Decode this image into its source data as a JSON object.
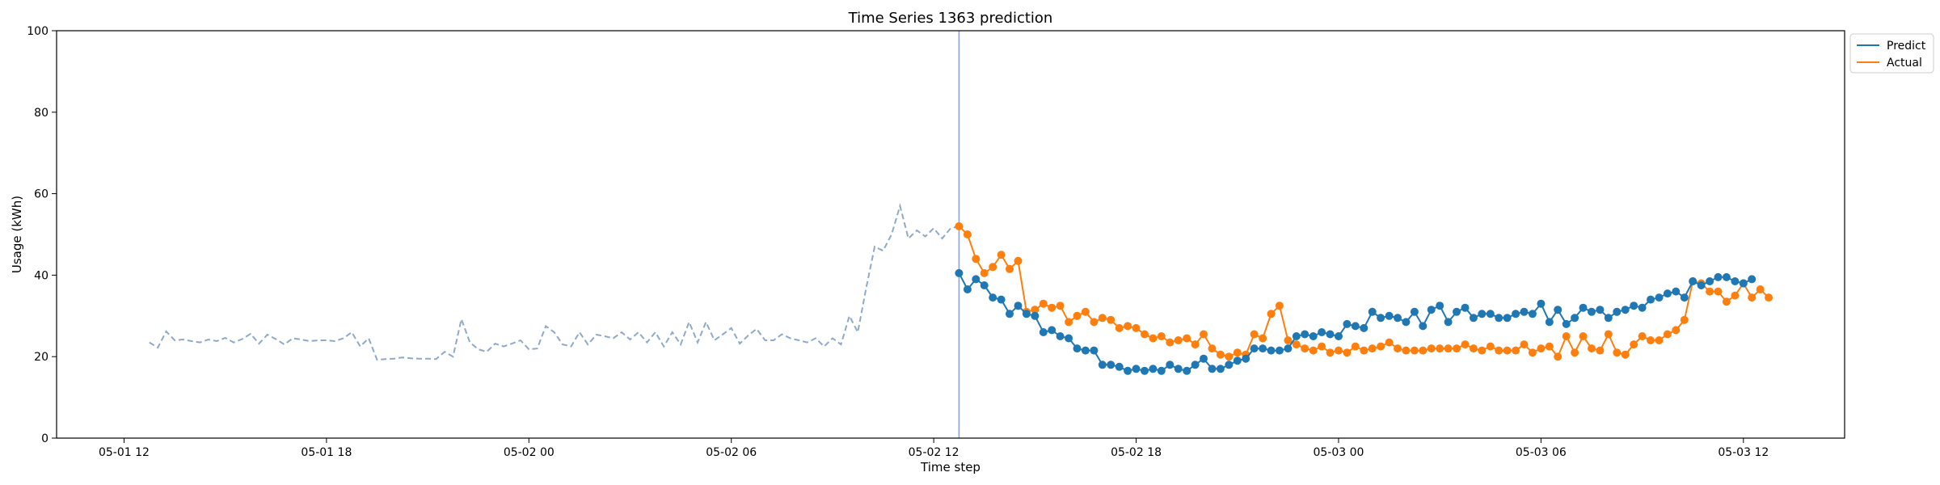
{
  "chart_data": {
    "type": "line",
    "title": "Time Series 1363 prediction",
    "xlabel": "Time step",
    "ylabel": "Usage (kWh)",
    "ylim": [
      0,
      100
    ],
    "yticks": [
      0,
      20,
      40,
      60,
      80,
      100
    ],
    "x_range": [
      "05-01 10:00",
      "05-03 15:00"
    ],
    "xtick_labels": [
      "05-01 12",
      "05-01 18",
      "05-02 00",
      "05-02 06",
      "05-02 12",
      "05-02 18",
      "05-03 00",
      "05-03 06",
      "05-03 12"
    ],
    "xtick_times": [
      "05-01 12:00",
      "05-01 18:00",
      "05-02 00:00",
      "05-02 06:00",
      "05-02 12:00",
      "05-02 18:00",
      "05-03 00:00",
      "05-03 06:00",
      "05-03 12:00"
    ],
    "step_minutes": 15,
    "grid": false,
    "legend_position": "upper-right-outside",
    "split_line_time": "05-02 12:45",
    "colors": {
      "history": "#8ea9c9",
      "predict": "#1f77b4",
      "actual": "#ff7f0e",
      "split": "#8c9fd0"
    },
    "history": {
      "x_start": "05-01 12:45",
      "values": [
        23.5,
        22.2,
        26.2,
        24.0,
        24.2,
        23.8,
        23.5,
        24.2,
        23.8,
        24.6,
        23.5,
        24.3,
        25.6,
        23.2,
        25.4,
        24.3,
        23.0,
        24.5,
        24.2,
        23.8,
        24.0,
        24.0,
        23.8,
        24.5,
        26.0,
        22.5,
        24.5,
        19.2,
        19.4,
        19.5,
        19.8,
        19.6,
        19.5,
        19.5,
        19.4,
        21.2,
        20.0,
        29.2,
        23.5,
        21.8,
        21.2,
        23.2,
        22.5,
        23.2,
        24.0,
        21.8,
        22.0,
        27.5,
        26.0,
        23.0,
        22.5,
        26.0,
        23.0,
        25.4,
        25.0,
        24.5,
        26.0,
        24.2,
        26.0,
        23.5,
        26.0,
        22.5,
        26.0,
        23.0,
        28.5,
        23.5,
        28.5,
        24.0,
        25.5,
        27.0,
        23.2,
        25.2,
        26.8,
        24.0,
        24.0,
        25.5,
        24.5,
        24.0,
        23.5,
        24.5,
        22.5,
        24.5,
        23.0,
        30.0,
        26.0,
        37.0,
        47.0,
        46.0,
        50.0,
        57.0,
        49.0,
        51.0,
        49.5,
        51.5,
        49.0,
        51.5,
        52.0
      ]
    },
    "series": [
      {
        "name": "Predict",
        "x_start": "05-02 12:45",
        "values": [
          40.5,
          36.5,
          39.0,
          37.5,
          34.5,
          34.0,
          30.5,
          32.5,
          30.5,
          30.0,
          26.0,
          26.5,
          25.0,
          24.5,
          22.0,
          21.5,
          21.5,
          18.0,
          18.0,
          17.5,
          16.5,
          17.0,
          16.5,
          17.0,
          16.5,
          18.0,
          17.0,
          16.5,
          18.0,
          19.5,
          17.0,
          17.0,
          18.0,
          19.0,
          19.5,
          22.0,
          22.0,
          21.5,
          21.5,
          22.0,
          25.0,
          25.5,
          25.0,
          26.0,
          25.5,
          25.0,
          28.0,
          27.5,
          27.0,
          31.0,
          29.5,
          30.0,
          29.5,
          28.5,
          31.0,
          27.5,
          31.5,
          32.5,
          28.5,
          31.0,
          32.0,
          29.5,
          30.5,
          30.5,
          29.5,
          29.5,
          30.5,
          31.0,
          30.5,
          33.0,
          28.5,
          31.5,
          28.0,
          29.5,
          32.0,
          31.0,
          31.5,
          29.5,
          31.0,
          31.5,
          32.5,
          32.0,
          34.0,
          34.5,
          35.5,
          36.0,
          34.5,
          38.5,
          37.5,
          38.5,
          39.5,
          39.5,
          38.5,
          38.0,
          39.0
        ]
      },
      {
        "name": "Actual",
        "x_start": "05-02 12:45",
        "values": [
          52.0,
          50.0,
          44.0,
          40.5,
          42.0,
          45.0,
          41.5,
          43.5,
          31.0,
          31.5,
          33.0,
          32.0,
          32.5,
          28.5,
          30.0,
          31.0,
          28.5,
          29.5,
          29.0,
          27.0,
          27.5,
          27.0,
          25.5,
          24.5,
          25.0,
          23.5,
          24.0,
          24.5,
          23.0,
          25.5,
          22.0,
          20.5,
          20.0,
          21.0,
          20.5,
          25.5,
          24.5,
          30.5,
          32.5,
          24.0,
          23.0,
          22.0,
          21.5,
          22.5,
          21.0,
          21.5,
          21.0,
          22.5,
          21.5,
          22.0,
          22.5,
          23.5,
          22.0,
          21.5,
          21.5,
          21.5,
          22.0,
          22.0,
          22.0,
          22.0,
          23.0,
          22.0,
          21.5,
          22.5,
          21.5,
          21.5,
          21.5,
          23.0,
          21.0,
          22.0,
          22.5,
          20.0,
          25.0,
          21.0,
          25.0,
          22.0,
          21.5,
          25.5,
          21.0,
          20.5,
          23.0,
          25.0,
          24.0,
          24.0,
          25.5,
          26.5,
          29.0,
          38.5,
          38.0,
          36.0,
          36.0,
          33.5,
          35.0,
          38.0,
          34.5,
          36.5,
          34.5
        ]
      }
    ]
  }
}
